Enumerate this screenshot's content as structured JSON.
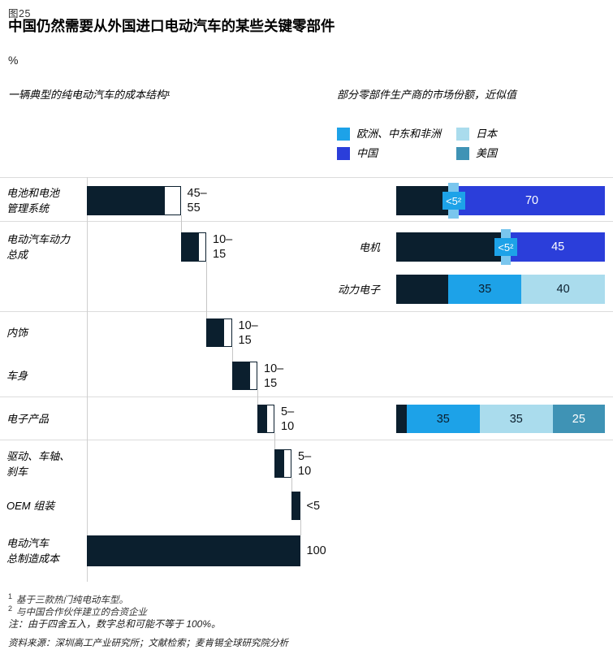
{
  "figure": {
    "fig_label": "图25",
    "title": "中国仍然需要从外国进口电动汽车的某些关键零部件",
    "unit": "%"
  },
  "colors": {
    "navy": "#0b1f2e",
    "china": "#2b3eda",
    "emea": "#1da2e8",
    "japan": "#aadced",
    "us": "#3f93b5",
    "band": "#7ac6ee"
  },
  "chart_data": {
    "type": "bar",
    "left": {
      "kind": "waterfall",
      "subtitle": "一辆典型的纯电动汽车的成本结构¹",
      "unit": "%",
      "axis_max": 125,
      "rows": [
        {
          "label_lines": [
            "电池和电池",
            "管理系统"
          ],
          "min": 45,
          "max": 55,
          "value_lines": [
            "45–",
            "55"
          ]
        },
        {
          "label_lines": [
            "电动汽车动力",
            "总成"
          ],
          "min": 10,
          "max": 15,
          "value_lines": [
            "10–",
            "15"
          ]
        },
        {
          "label_lines": [
            "内饰"
          ],
          "min": 10,
          "max": 15,
          "value_lines": [
            "10–",
            "15"
          ]
        },
        {
          "label_lines": [
            "车身"
          ],
          "min": 10,
          "max": 15,
          "value_lines": [
            "10–",
            "15"
          ]
        },
        {
          "label_lines": [
            "电子产品"
          ],
          "min": 5,
          "max": 10,
          "value_lines": [
            "5–",
            "10"
          ]
        },
        {
          "label_lines": [
            "驱动、车轴、",
            "刹车"
          ],
          "min": 5,
          "max": 10,
          "value_lines": [
            "5–",
            "10"
          ]
        },
        {
          "label_lines": [
            "OEM 组装"
          ],
          "min": 5,
          "max": 5,
          "value_lines": [
            "<5"
          ]
        },
        {
          "label_lines": [
            "电动汽车",
            "总制造成本"
          ],
          "total": true,
          "value": 100,
          "value_lines": [
            "100"
          ]
        }
      ]
    },
    "right": {
      "kind": "stacked-bar",
      "subtitle": "部分零部件生产商的市场份额，近似值",
      "legend": [
        {
          "label": "欧洲、中东和非洲",
          "region": "emea",
          "col": 0
        },
        {
          "label": "中国",
          "region": "china",
          "col": 0
        },
        {
          "label": "日本",
          "region": "japan",
          "col": 1
        },
        {
          "label": "美国",
          "region": "us",
          "col": 1
        }
      ],
      "rows": [
        {
          "label": "",
          "segments": [
            {
              "region": "other",
              "value": 25
            },
            {
              "region": "emea",
              "value": 5,
              "display": "<5²",
              "callout": true
            },
            {
              "region": "china",
              "value": 70,
              "display": "70"
            }
          ]
        },
        {
          "label": "电机",
          "segments": [
            {
              "region": "other",
              "value": 50
            },
            {
              "region": "emea",
              "value": 5,
              "display": "<5²",
              "callout": true
            },
            {
              "region": "china",
              "value": 45,
              "display": "45"
            }
          ]
        },
        {
          "label": "动力电子",
          "segments": [
            {
              "region": "other",
              "value": 25
            },
            {
              "region": "emea",
              "value": 35,
              "display": "35"
            },
            {
              "region": "japan",
              "value": 40,
              "display": "40"
            }
          ]
        },
        {
          "label": "",
          "segments": [
            {
              "region": "other",
              "value": 5
            },
            {
              "region": "emea",
              "value": 35,
              "display": "35"
            },
            {
              "region": "japan",
              "value": 35,
              "display": "35"
            },
            {
              "region": "us",
              "value": 25,
              "display": "25"
            }
          ]
        }
      ]
    }
  },
  "footnotes": [
    {
      "marker": "1",
      "text": "基于三款热门纯电动车型。"
    },
    {
      "marker": "2",
      "text": "与中国合作伙伴建立的合资企业"
    }
  ],
  "note": "注：由于四舍五入，数字总和可能不等于 100%。",
  "source": "资料来源：深圳高工产业研究所；文献检索；麦肯锡全球研究院分析"
}
